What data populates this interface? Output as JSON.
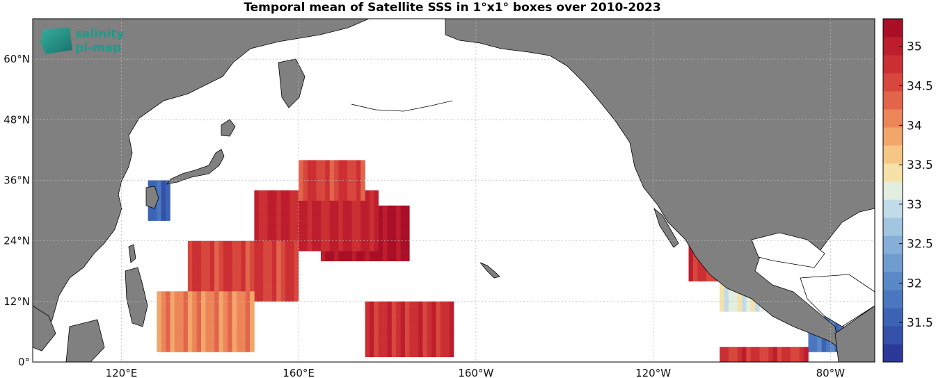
{
  "title": "Temporal mean of Satellite SSS in 1°x1° boxes over 2010-2023",
  "logo": {
    "line1": "salinity",
    "line2": "pi-mep"
  },
  "map": {
    "lon_range": [
      100,
      290
    ],
    "lat_range": [
      0,
      68
    ],
    "land_color": "#808080",
    "ocean_color": "#ffffff",
    "grid": true,
    "lon_ticks": [
      {
        "lon": 120,
        "label": "120°E"
      },
      {
        "lon": 160,
        "label": "160°E"
      },
      {
        "lon": 200,
        "label": "160°W"
      },
      {
        "lon": 240,
        "label": "120°W"
      },
      {
        "lon": 280,
        "label": "80°W"
      }
    ],
    "lat_ticks": [
      {
        "lat": 0,
        "label": "0°"
      },
      {
        "lat": 12,
        "label": "12°N"
      },
      {
        "lat": 24,
        "label": "24°N"
      },
      {
        "lat": 36,
        "label": "36°N"
      },
      {
        "lat": 48,
        "label": "48°N"
      },
      {
        "lat": 60,
        "label": "60°N"
      }
    ]
  },
  "colorbar": {
    "range": [
      31.0,
      35.35
    ],
    "ticks": [
      {
        "value": 31.5,
        "label": "31.5"
      },
      {
        "value": 32,
        "label": "32"
      },
      {
        "value": 32.5,
        "label": "32.5"
      },
      {
        "value": 33,
        "label": "33"
      },
      {
        "value": 33.5,
        "label": "33.5"
      },
      {
        "value": 34,
        "label": "34"
      },
      {
        "value": 34.5,
        "label": "34.5"
      },
      {
        "value": 35,
        "label": "35"
      }
    ],
    "colors": [
      "#2b3a9a",
      "#3450a8",
      "#3d63b5",
      "#4a77bf",
      "#5b89c7",
      "#6f9ccf",
      "#86afd8",
      "#a2c5e0",
      "#c2dbe8",
      "#e2eedf",
      "#f6e2a8",
      "#f6c784",
      "#f2a66b",
      "#ec8659",
      "#e2654b",
      "#d8473d",
      "#cc2f33",
      "#bd1d2c",
      "#a90f27"
    ]
  },
  "chart_data": {
    "type": "heatmap",
    "title": "Temporal mean of Satellite SSS in 1°x1° boxes over 2010-2023",
    "variable": "Satellite SSS",
    "resolution_deg": 1,
    "period": "2010-2023",
    "color_range": [
      31.0,
      35.35
    ],
    "regions": [
      {
        "lon": [
          165,
          185
        ],
        "lat": [
          20,
          31
        ],
        "sss": 35.2
      },
      {
        "lon": [
          150,
          178
        ],
        "lat": [
          22,
          34
        ],
        "sss": 34.9
      },
      {
        "lon": [
          135,
          160
        ],
        "lat": [
          12,
          24
        ],
        "sss": 34.6
      },
      {
        "lon": [
          128,
          150
        ],
        "lat": [
          2,
          14
        ],
        "sss": 34.1
      },
      {
        "lon": [
          175,
          195
        ],
        "lat": [
          1,
          12
        ],
        "sss": 34.8
      },
      {
        "lon": [
          160,
          175
        ],
        "lat": [
          32,
          40
        ],
        "sss": 34.6
      },
      {
        "lon": [
          126,
          131
        ],
        "lat": [
          28,
          36
        ],
        "sss": 31.6
      },
      {
        "lon": [
          248,
          255
        ],
        "lat": [
          16,
          28
        ],
        "sss": 34.7
      },
      {
        "lon": [
          255,
          265
        ],
        "lat": [
          10,
          17
        ],
        "sss": 33.2
      },
      {
        "lon": [
          275,
          283
        ],
        "lat": [
          2,
          9
        ],
        "sss": 31.8
      },
      {
        "lon": [
          255,
          275
        ],
        "lat": [
          0,
          3
        ],
        "sss": 34.7
      }
    ]
  }
}
